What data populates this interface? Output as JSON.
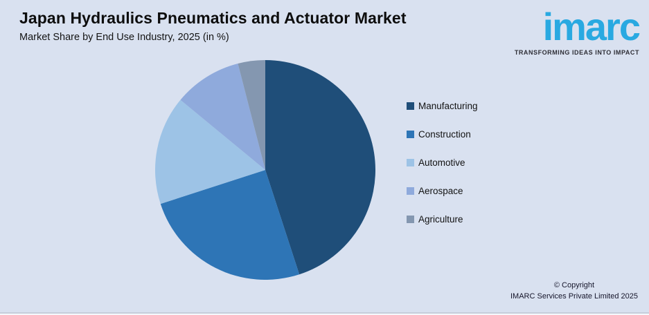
{
  "header": {
    "title": "Japan Hydraulics Pneumatics and Actuator Market",
    "subtitle": "Market Share by End Use Industry, 2025 (in %)"
  },
  "logo": {
    "text": "imarc",
    "tagline": "TRANSFORMING IDEAS INTO IMPACT",
    "brand_color": "#29A9E1"
  },
  "footer": {
    "copyright_line1": "© Copyright",
    "copyright_line2": "IMARC Services Private Limited 2025"
  },
  "colors": {
    "background": "#D9E1F0",
    "title_text": "#0D0D0D"
  },
  "chart_data": {
    "type": "pie",
    "title": "Japan Hydraulics Pneumatics and Actuator Market",
    "subtitle": "Market Share by End Use Industry, 2025 (in %)",
    "unit": "percent",
    "categories": [
      "Manufacturing",
      "Construction",
      "Automotive",
      "Aerospace",
      "Agriculture"
    ],
    "values": [
      45,
      25,
      16,
      10,
      4
    ],
    "colors": [
      "#1F4E79",
      "#2E75B6",
      "#9DC3E6",
      "#8FAADC",
      "#8497B0"
    ],
    "start_angle_deg": 0,
    "direction": "clockwise",
    "legend_position": "right",
    "data_labels": false
  }
}
